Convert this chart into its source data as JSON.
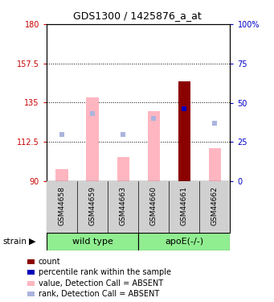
{
  "title": "GDS1300 / 1425876_a_at",
  "samples": [
    "GSM44658",
    "GSM44659",
    "GSM44663",
    "GSM44660",
    "GSM44661",
    "GSM44662"
  ],
  "ylim_left": [
    90,
    180
  ],
  "ylim_right": [
    0,
    100
  ],
  "yticks_left": [
    90,
    112.5,
    135,
    157.5,
    180
  ],
  "yticks_right": [
    0,
    25,
    50,
    75,
    100
  ],
  "bar_values": [
    97,
    138,
    104,
    130,
    147,
    109
  ],
  "bar_is_absent": [
    true,
    true,
    true,
    true,
    false,
    true
  ],
  "rank_dot_values_pct": [
    30,
    43,
    30,
    40,
    46,
    37
  ],
  "rank_is_absent": [
    true,
    true,
    true,
    true,
    false,
    true
  ],
  "color_bar_present": "#8B0000",
  "color_bar_absent": "#FFB6C1",
  "color_rank_present": "#0000BB",
  "color_rank_absent": "#aab4dd",
  "legend_items": [
    {
      "label": "count",
      "color": "#8B0000",
      "marker": "s"
    },
    {
      "label": "percentile rank within the sample",
      "color": "#0000BB",
      "marker": "s"
    },
    {
      "label": "value, Detection Call = ABSENT",
      "color": "#FFB6C1",
      "marker": "s"
    },
    {
      "label": "rank, Detection Call = ABSENT",
      "color": "#aab4dd",
      "marker": "s"
    }
  ],
  "gray_bg": "#d0d0d0",
  "green_bg": "#90EE90",
  "axis_color_left": "#cc0000",
  "axis_color_right": "#0000cc",
  "title_fontsize": 9,
  "tick_fontsize": 7,
  "sample_fontsize": 6.5,
  "group_fontsize": 8,
  "legend_fontsize": 7,
  "bar_width": 0.4,
  "rank_marker_size": 22
}
